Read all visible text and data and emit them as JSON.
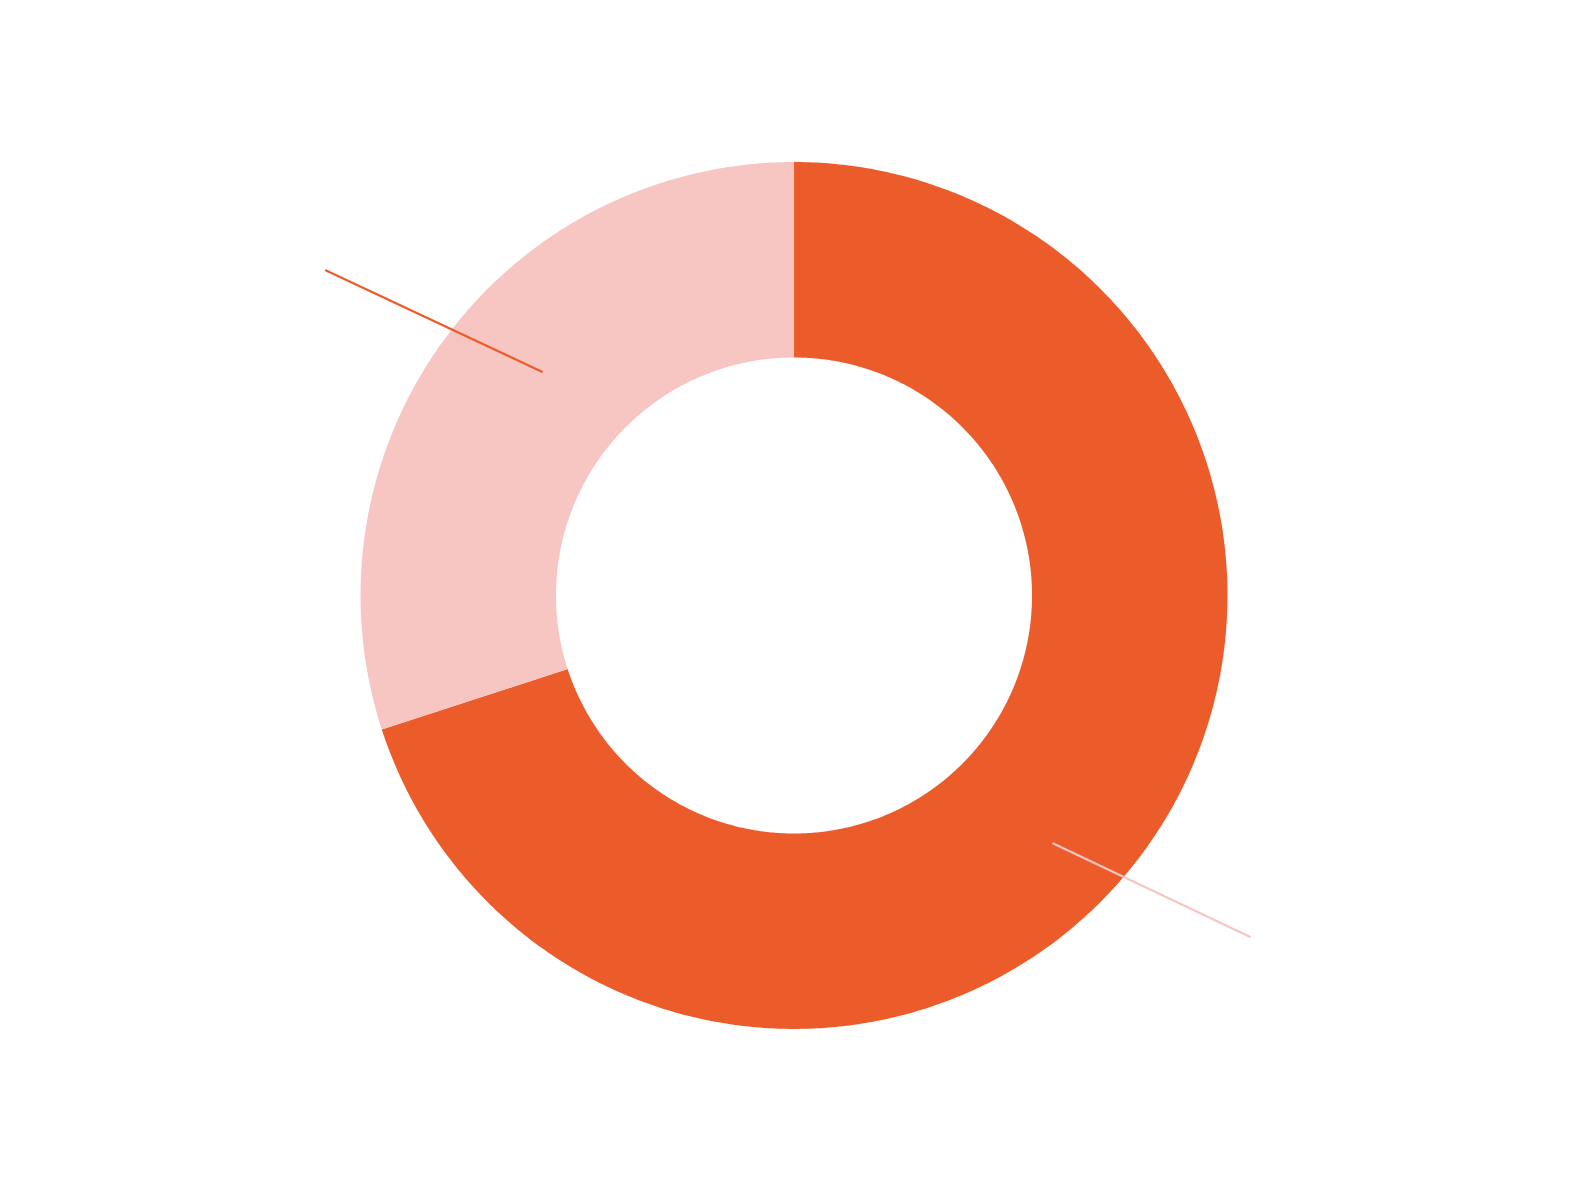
{
  "chart_data": {
    "type": "donut",
    "categories": [
      null,
      null
    ],
    "values": [
      70,
      30
    ],
    "colors": [
      "#ec5b2a",
      "#f8c6c2"
    ]
  }
}
